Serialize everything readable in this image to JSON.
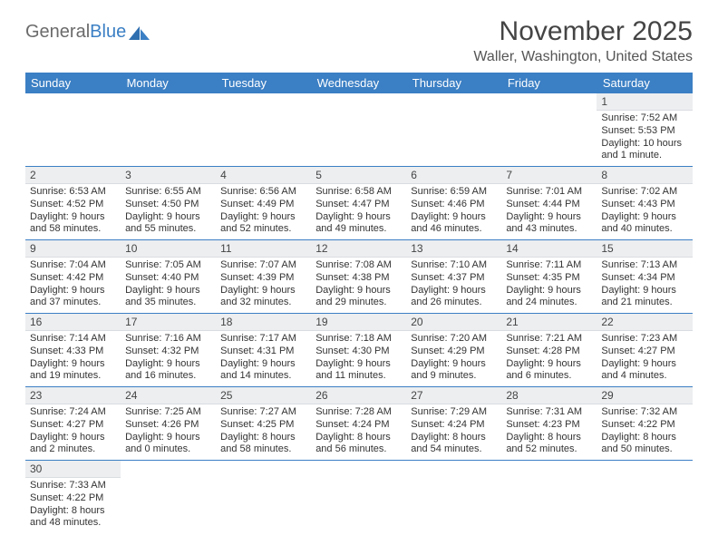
{
  "logo": {
    "text1": "General",
    "text2": "Blue"
  },
  "title": "November 2025",
  "location": "Waller, Washington, United States",
  "colors": {
    "header_bg": "#3b7fc4",
    "header_text": "#ffffff",
    "daynum_bg": "#eceef0",
    "border": "#3b7fc4",
    "page_bg": "#ffffff",
    "logo_gray": "#6b6b6b",
    "logo_blue": "#3b7fc4"
  },
  "weekdays": [
    "Sunday",
    "Monday",
    "Tuesday",
    "Wednesday",
    "Thursday",
    "Friday",
    "Saturday"
  ],
  "weeks": [
    [
      null,
      null,
      null,
      null,
      null,
      null,
      {
        "n": "1",
        "sr": "Sunrise: 7:52 AM",
        "ss": "Sunset: 5:53 PM",
        "dl": "Daylight: 10 hours and 1 minute."
      }
    ],
    [
      {
        "n": "2",
        "sr": "Sunrise: 6:53 AM",
        "ss": "Sunset: 4:52 PM",
        "dl": "Daylight: 9 hours and 58 minutes."
      },
      {
        "n": "3",
        "sr": "Sunrise: 6:55 AM",
        "ss": "Sunset: 4:50 PM",
        "dl": "Daylight: 9 hours and 55 minutes."
      },
      {
        "n": "4",
        "sr": "Sunrise: 6:56 AM",
        "ss": "Sunset: 4:49 PM",
        "dl": "Daylight: 9 hours and 52 minutes."
      },
      {
        "n": "5",
        "sr": "Sunrise: 6:58 AM",
        "ss": "Sunset: 4:47 PM",
        "dl": "Daylight: 9 hours and 49 minutes."
      },
      {
        "n": "6",
        "sr": "Sunrise: 6:59 AM",
        "ss": "Sunset: 4:46 PM",
        "dl": "Daylight: 9 hours and 46 minutes."
      },
      {
        "n": "7",
        "sr": "Sunrise: 7:01 AM",
        "ss": "Sunset: 4:44 PM",
        "dl": "Daylight: 9 hours and 43 minutes."
      },
      {
        "n": "8",
        "sr": "Sunrise: 7:02 AM",
        "ss": "Sunset: 4:43 PM",
        "dl": "Daylight: 9 hours and 40 minutes."
      }
    ],
    [
      {
        "n": "9",
        "sr": "Sunrise: 7:04 AM",
        "ss": "Sunset: 4:42 PM",
        "dl": "Daylight: 9 hours and 37 minutes."
      },
      {
        "n": "10",
        "sr": "Sunrise: 7:05 AM",
        "ss": "Sunset: 4:40 PM",
        "dl": "Daylight: 9 hours and 35 minutes."
      },
      {
        "n": "11",
        "sr": "Sunrise: 7:07 AM",
        "ss": "Sunset: 4:39 PM",
        "dl": "Daylight: 9 hours and 32 minutes."
      },
      {
        "n": "12",
        "sr": "Sunrise: 7:08 AM",
        "ss": "Sunset: 4:38 PM",
        "dl": "Daylight: 9 hours and 29 minutes."
      },
      {
        "n": "13",
        "sr": "Sunrise: 7:10 AM",
        "ss": "Sunset: 4:37 PM",
        "dl": "Daylight: 9 hours and 26 minutes."
      },
      {
        "n": "14",
        "sr": "Sunrise: 7:11 AM",
        "ss": "Sunset: 4:35 PM",
        "dl": "Daylight: 9 hours and 24 minutes."
      },
      {
        "n": "15",
        "sr": "Sunrise: 7:13 AM",
        "ss": "Sunset: 4:34 PM",
        "dl": "Daylight: 9 hours and 21 minutes."
      }
    ],
    [
      {
        "n": "16",
        "sr": "Sunrise: 7:14 AM",
        "ss": "Sunset: 4:33 PM",
        "dl": "Daylight: 9 hours and 19 minutes."
      },
      {
        "n": "17",
        "sr": "Sunrise: 7:16 AM",
        "ss": "Sunset: 4:32 PM",
        "dl": "Daylight: 9 hours and 16 minutes."
      },
      {
        "n": "18",
        "sr": "Sunrise: 7:17 AM",
        "ss": "Sunset: 4:31 PM",
        "dl": "Daylight: 9 hours and 14 minutes."
      },
      {
        "n": "19",
        "sr": "Sunrise: 7:18 AM",
        "ss": "Sunset: 4:30 PM",
        "dl": "Daylight: 9 hours and 11 minutes."
      },
      {
        "n": "20",
        "sr": "Sunrise: 7:20 AM",
        "ss": "Sunset: 4:29 PM",
        "dl": "Daylight: 9 hours and 9 minutes."
      },
      {
        "n": "21",
        "sr": "Sunrise: 7:21 AM",
        "ss": "Sunset: 4:28 PM",
        "dl": "Daylight: 9 hours and 6 minutes."
      },
      {
        "n": "22",
        "sr": "Sunrise: 7:23 AM",
        "ss": "Sunset: 4:27 PM",
        "dl": "Daylight: 9 hours and 4 minutes."
      }
    ],
    [
      {
        "n": "23",
        "sr": "Sunrise: 7:24 AM",
        "ss": "Sunset: 4:27 PM",
        "dl": "Daylight: 9 hours and 2 minutes."
      },
      {
        "n": "24",
        "sr": "Sunrise: 7:25 AM",
        "ss": "Sunset: 4:26 PM",
        "dl": "Daylight: 9 hours and 0 minutes."
      },
      {
        "n": "25",
        "sr": "Sunrise: 7:27 AM",
        "ss": "Sunset: 4:25 PM",
        "dl": "Daylight: 8 hours and 58 minutes."
      },
      {
        "n": "26",
        "sr": "Sunrise: 7:28 AM",
        "ss": "Sunset: 4:24 PM",
        "dl": "Daylight: 8 hours and 56 minutes."
      },
      {
        "n": "27",
        "sr": "Sunrise: 7:29 AM",
        "ss": "Sunset: 4:24 PM",
        "dl": "Daylight: 8 hours and 54 minutes."
      },
      {
        "n": "28",
        "sr": "Sunrise: 7:31 AM",
        "ss": "Sunset: 4:23 PM",
        "dl": "Daylight: 8 hours and 52 minutes."
      },
      {
        "n": "29",
        "sr": "Sunrise: 7:32 AM",
        "ss": "Sunset: 4:22 PM",
        "dl": "Daylight: 8 hours and 50 minutes."
      }
    ],
    [
      {
        "n": "30",
        "sr": "Sunrise: 7:33 AM",
        "ss": "Sunset: 4:22 PM",
        "dl": "Daylight: 8 hours and 48 minutes."
      },
      null,
      null,
      null,
      null,
      null,
      null
    ]
  ]
}
